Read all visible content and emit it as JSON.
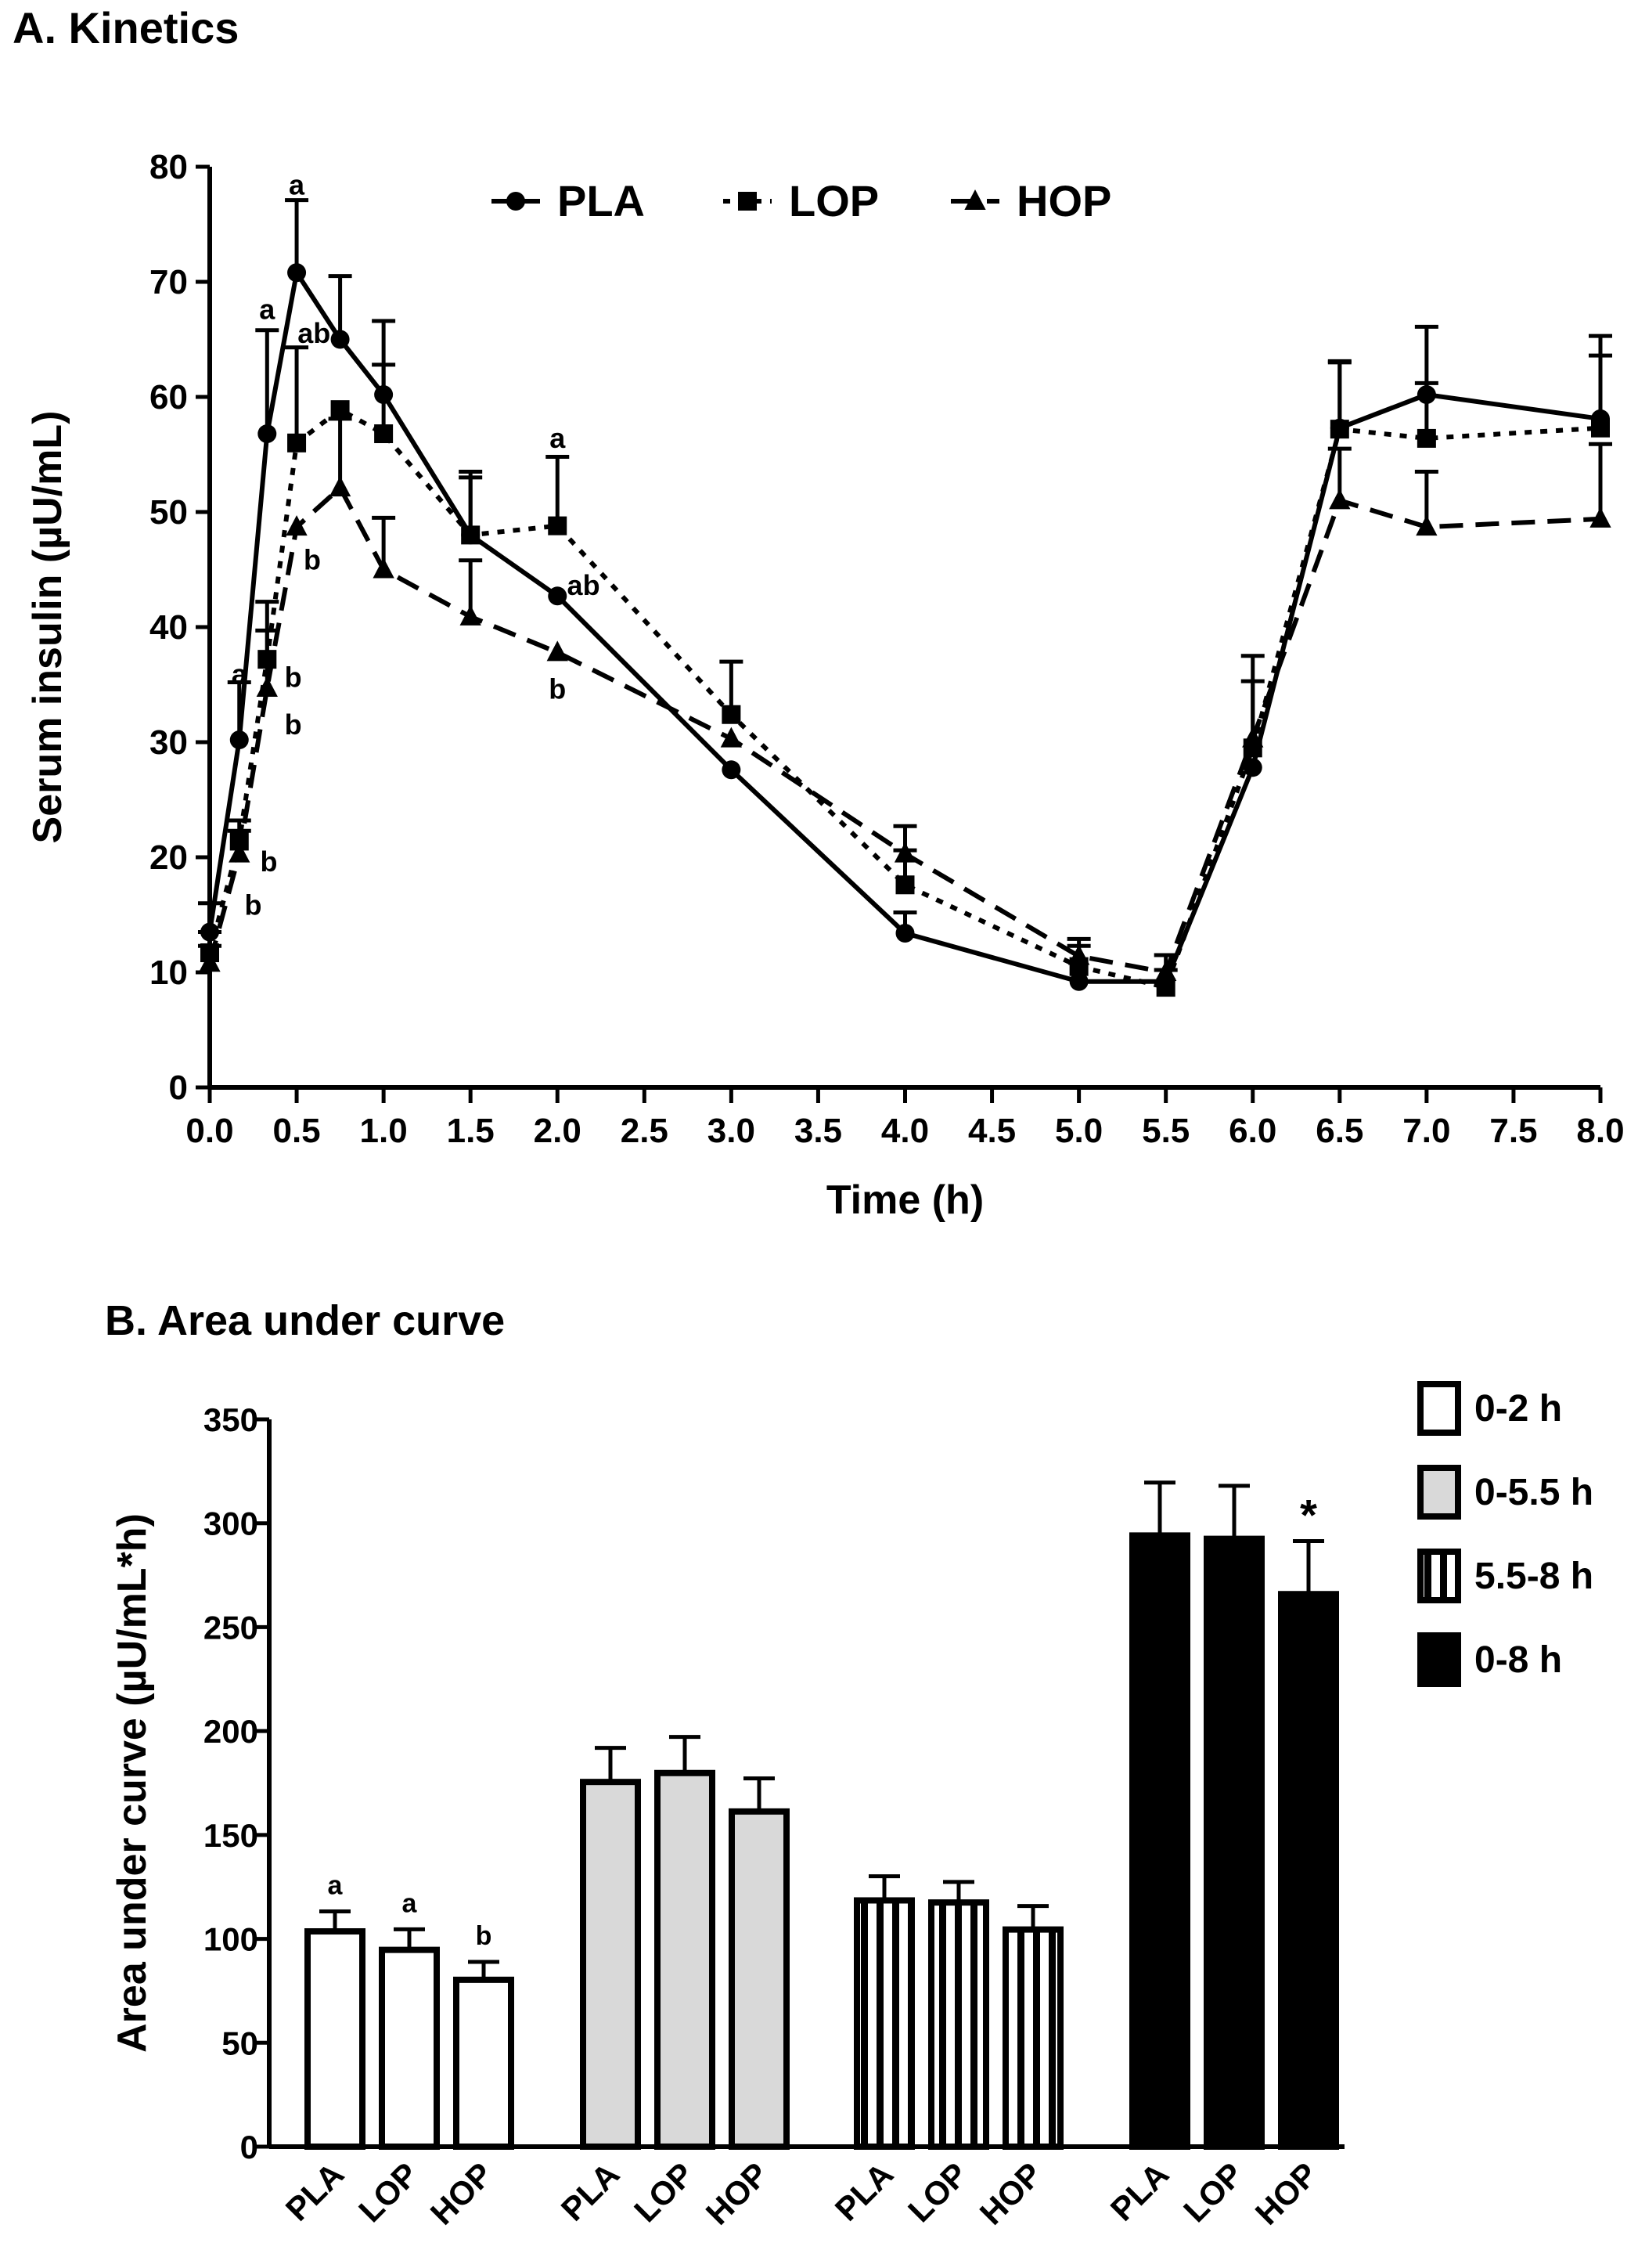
{
  "chart_data": [
    {
      "type": "line",
      "title": "A. Kinetics",
      "xlabel": "Time (h)",
      "ylabel": "Serum insulin (µU/mL)",
      "xlim": [
        0,
        8
      ],
      "ylim": [
        0,
        80
      ],
      "x_tick_labels": [
        "0.0",
        "0.5",
        "1.0",
        "1.5",
        "2.0",
        "2.5",
        "3.0",
        "3.5",
        "4.0",
        "4.5",
        "5.0",
        "5.5",
        "6.0",
        "6.5",
        "7.0",
        "7.5",
        "8.0"
      ],
      "y_tick_labels": [
        "0",
        "10",
        "20",
        "30",
        "40",
        "50",
        "60",
        "70",
        "80"
      ],
      "legend_position": "top",
      "series": [
        {
          "name": "PLA",
          "marker": "circle",
          "line": "solid",
          "x": [
            0,
            0.17,
            0.33,
            0.5,
            0.75,
            1.0,
            1.5,
            2.0,
            3.0,
            4.0,
            5.0,
            5.5,
            6.0,
            6.5,
            7.0,
            8.0
          ],
          "y": [
            13.5,
            30.2,
            56.8,
            70.8,
            65.0,
            60.2,
            48.0,
            42.7,
            27.6,
            13.4,
            9.2,
            9.2,
            27.8,
            57.3,
            60.2,
            58.1
          ],
          "err": [
            2.5,
            5.0,
            9.0,
            6.3,
            5.5,
            6.4,
            5.5,
            0,
            0,
            1.8,
            0,
            0,
            0,
            5.7,
            5.9,
            7.2
          ]
        },
        {
          "name": "LOP",
          "marker": "square",
          "line": "dotted",
          "x": [
            0,
            0.17,
            0.33,
            0.5,
            0.75,
            1.0,
            1.5,
            2.0,
            3.0,
            4.0,
            5.0,
            5.5,
            6.0,
            6.5,
            7.0,
            8.0
          ],
          "y": [
            11.7,
            21.4,
            37.2,
            56.0,
            58.9,
            56.8,
            48.0,
            48.8,
            32.4,
            17.6,
            10.5,
            8.7,
            29.5,
            57.2,
            56.4,
            57.3
          ],
          "err": [
            1.8,
            1.8,
            5.0,
            8.3,
            0,
            6.0,
            5.0,
            6.0,
            4.6,
            3.0,
            1.8,
            1.5,
            5.8,
            5.9,
            4.8,
            6.3
          ]
        },
        {
          "name": "HOP",
          "marker": "triangle",
          "line": "dashed",
          "x": [
            0,
            0.17,
            0.33,
            0.5,
            0.75,
            1.0,
            1.5,
            2.0,
            3.0,
            4.0,
            5.0,
            5.5,
            6.0,
            6.5,
            7.0,
            8.0
          ],
          "y": [
            10.8,
            20.3,
            34.7,
            48.7,
            52.1,
            45.0,
            40.9,
            37.8,
            30.3,
            20.3,
            11.4,
            10.0,
            30.3,
            51.0,
            48.7,
            49.4
          ],
          "err": [
            1.5,
            2.0,
            5.0,
            0,
            6.0,
            4.5,
            4.9,
            0,
            0,
            2.4,
            1.5,
            1.5,
            7.2,
            4.5,
            4.8,
            6.5
          ]
        }
      ],
      "annotations": [
        {
          "text": "a",
          "x": 0.5,
          "y": 78.4
        },
        {
          "text": "a",
          "x": 0.33,
          "y": 67.6
        },
        {
          "text": "ab",
          "x": 0.6,
          "y": 65.5
        },
        {
          "text": "b",
          "x": 0.59,
          "y": 45.8
        },
        {
          "text": "a",
          "x": 0.17,
          "y": 35.9
        },
        {
          "text": "b",
          "x": 0.48,
          "y": 35.6
        },
        {
          "text": "b",
          "x": 0.48,
          "y": 31.5
        },
        {
          "text": "b",
          "x": 0.34,
          "y": 19.6
        },
        {
          "text": "b",
          "x": 0.25,
          "y": 15.8
        },
        {
          "text": "a",
          "x": 2.0,
          "y": 56.4
        },
        {
          "text": "ab",
          "x": 2.15,
          "y": 43.6
        },
        {
          "text": "b",
          "x": 2.0,
          "y": 34.6
        }
      ]
    },
    {
      "type": "bar",
      "title": "B. Area under curve",
      "xlabel": "",
      "ylabel": "Area under curve (µU/mL*h)",
      "ylim": [
        0,
        350
      ],
      "y_tick_labels": [
        "0",
        "50",
        "100",
        "150",
        "200",
        "250",
        "300",
        "350"
      ],
      "legend_position": "right",
      "groups": [
        "0-2 h",
        "0-5.5 h",
        "5.5-8 h",
        "0-8 h"
      ],
      "categories": [
        "PLA",
        "LOP",
        "HOP"
      ],
      "series": [
        {
          "name": "0-2 h",
          "fill": "white",
          "values": [
            103.6,
            94.7,
            80.3
          ],
          "err": [
            9.6,
            9.9,
            8.6
          ],
          "labels": [
            "a",
            "a",
            "b"
          ]
        },
        {
          "name": "0-5.5 h",
          "fill": "gray",
          "values": [
            175.5,
            179.8,
            161.3
          ],
          "err": [
            16.4,
            17.4,
            15.9
          ],
          "labels": [
            "",
            "",
            ""
          ]
        },
        {
          "name": "5.5-8 h",
          "fill": "striped",
          "values": [
            118.5,
            117.5,
            104.5
          ],
          "err": [
            11.6,
            9.9,
            11.3
          ],
          "labels": [
            "",
            "",
            ""
          ]
        },
        {
          "name": "0-8 h",
          "fill": "black",
          "values": [
            294.1,
            292.5,
            265.9
          ],
          "err": [
            25.5,
            25.5,
            25.5
          ],
          "labels": [
            "",
            "",
            "*"
          ]
        }
      ],
      "colors": {
        "white": "#ffffff",
        "gray": "#d9d9d9",
        "black": "#000000",
        "stroke": "#000000"
      }
    }
  ]
}
